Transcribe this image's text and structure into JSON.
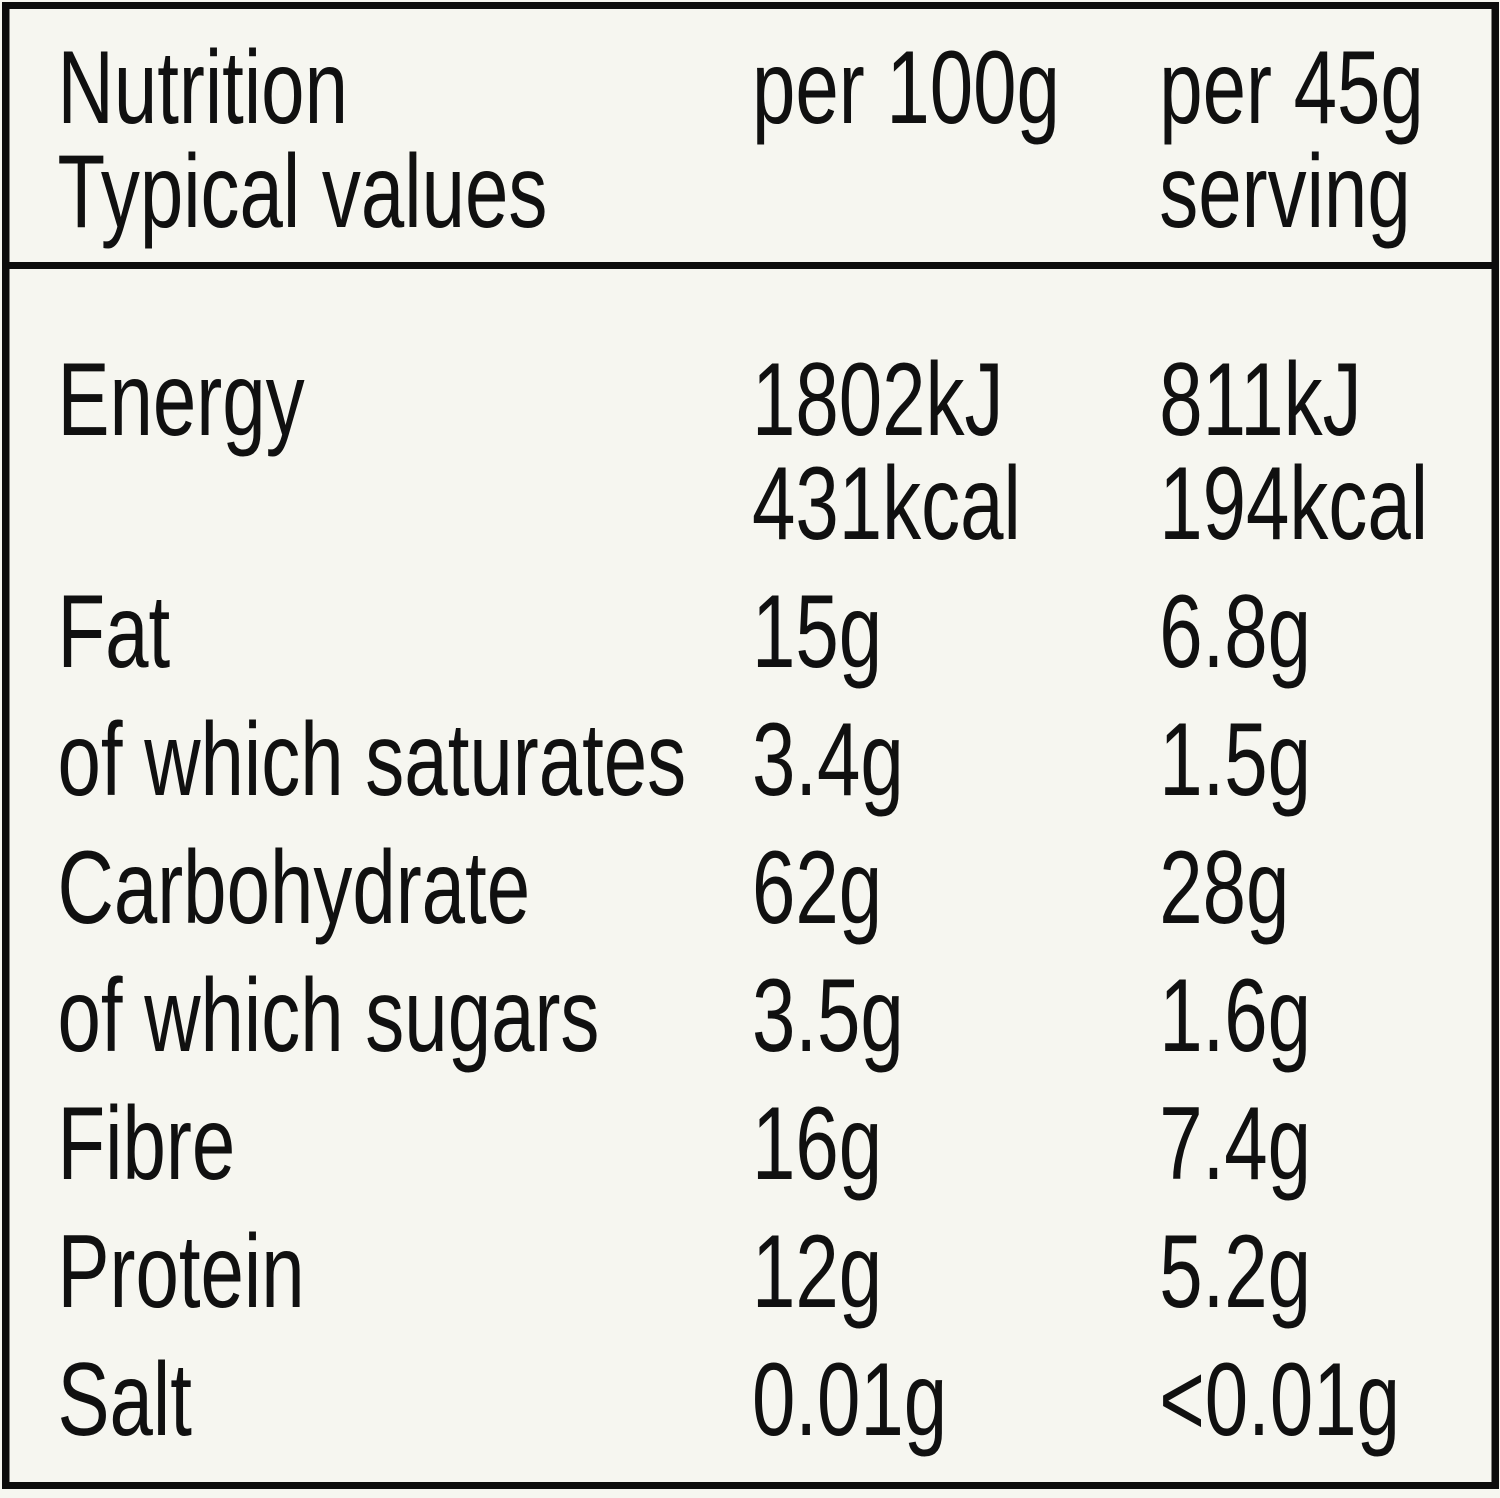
{
  "header": {
    "title_line1": "Nutrition",
    "title_line2": "Typical values",
    "col_per_100g": "per 100g",
    "col_serving_line1": "per 45g",
    "col_serving_line2": "serving"
  },
  "rows": [
    {
      "label": "Energy",
      "per100g": [
        "1802kJ",
        "431kcal"
      ],
      "perServing": [
        "811kJ",
        "194kcal"
      ]
    },
    {
      "label": "Fat",
      "per100g": "15g",
      "perServing": "6.8g"
    },
    {
      "label": "of which saturates",
      "per100g": "3.4g",
      "perServing": "1.5g"
    },
    {
      "label": "Carbohydrate",
      "per100g": "62g",
      "perServing": "28g"
    },
    {
      "label": "of which sugars",
      "per100g": "3.5g",
      "perServing": "1.6g"
    },
    {
      "label": "Fibre",
      "per100g": "16g",
      "perServing": "7.4g"
    },
    {
      "label": "Protein",
      "per100g": "12g",
      "perServing": "5.2g"
    },
    {
      "label": "Salt",
      "per100g": "0.01g",
      "perServing": "<0.01g"
    }
  ],
  "colors": {
    "background": "#f6f6f0",
    "text": "#101010",
    "border": "#0c0c0c"
  }
}
